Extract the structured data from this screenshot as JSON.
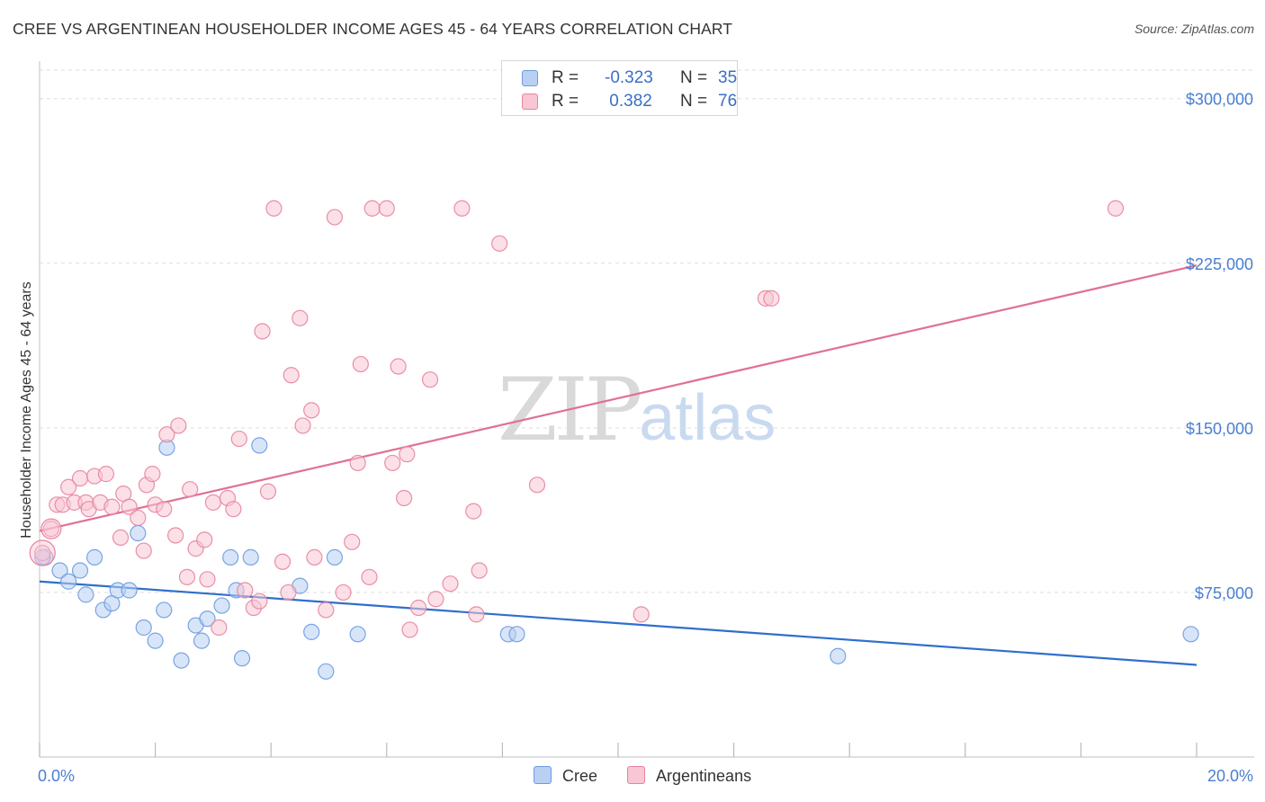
{
  "chart_data": {
    "type": "scatter",
    "title": "CREE VS ARGENTINEAN HOUSEHOLDER INCOME AGES 45 - 64 YEARS CORRELATION CHART",
    "source": "Source: ZipAtlas.com",
    "source_label": "Source: ",
    "source_site": "ZipAtlas.com",
    "xlabel": "",
    "ylabel": "Householder Income Ages 45 - 64 years",
    "xlim": [
      0,
      20
    ],
    "ylim": [
      0,
      313000
    ],
    "x_tick_labels": [
      "0.0%",
      "20.0%"
    ],
    "y_ticks": [
      75000,
      150000,
      225000,
      300000
    ],
    "y_tick_labels": [
      "$75,000",
      "$150,000",
      "$225,000",
      "$300,000"
    ],
    "grid": true,
    "watermark": {
      "zip": "ZIP",
      "atlas": "atlas"
    },
    "legend": [
      {
        "name": "Cree",
        "r_label": "R = ",
        "r": "-0.323",
        "n_label": "N = ",
        "n": "35",
        "color": "#6b9be0",
        "fill": "#b8d0f2"
      },
      {
        "name": "Argentineans",
        "r_label": "R = ",
        "r": " 0.382",
        "n_label": "N = ",
        "n": "76",
        "color": "#e8839f",
        "fill": "#f8c6d4"
      }
    ],
    "series": [
      {
        "name": "Cree",
        "color": "#6b9be0",
        "fill": "#b8d0f2",
        "trend": {
          "x0": 0,
          "y0": 80000,
          "x1": 20,
          "y1": 42000,
          "color": "#2f6fcc"
        },
        "points": [
          [
            0.1,
            91000
          ],
          [
            0.35,
            85000
          ],
          [
            0.5,
            80000
          ],
          [
            0.7,
            85000
          ],
          [
            0.8,
            74000
          ],
          [
            0.95,
            91000
          ],
          [
            1.1,
            67000
          ],
          [
            1.25,
            70000
          ],
          [
            1.35,
            76000
          ],
          [
            1.55,
            76000
          ],
          [
            1.7,
            102000
          ],
          [
            1.8,
            59000
          ],
          [
            2.0,
            53000
          ],
          [
            2.15,
            67000
          ],
          [
            2.2,
            141000
          ],
          [
            2.45,
            44000
          ],
          [
            2.7,
            60000
          ],
          [
            2.8,
            53000
          ],
          [
            2.9,
            63000
          ],
          [
            3.15,
            69000
          ],
          [
            3.3,
            91000
          ],
          [
            3.4,
            76000
          ],
          [
            3.5,
            45000
          ],
          [
            3.65,
            91000
          ],
          [
            3.8,
            142000
          ],
          [
            4.5,
            78000
          ],
          [
            4.7,
            57000
          ],
          [
            4.95,
            39000
          ],
          [
            5.1,
            91000
          ],
          [
            5.5,
            56000
          ],
          [
            8.1,
            56000
          ],
          [
            8.25,
            56000
          ],
          [
            13.8,
            46000
          ],
          [
            19.9,
            56000
          ],
          [
            0.05,
            91000
          ]
        ]
      },
      {
        "name": "Argentineans",
        "color": "#e8839f",
        "fill": "#f8c6d4",
        "trend": {
          "x0": 0,
          "y0": 103000,
          "x1": 20,
          "y1": 224000,
          "color": "#e07095"
        },
        "points": [
          [
            0.05,
            93000
          ],
          [
            0.2,
            104000
          ],
          [
            0.3,
            115000
          ],
          [
            0.4,
            115000
          ],
          [
            0.5,
            123000
          ],
          [
            0.6,
            116000
          ],
          [
            0.7,
            127000
          ],
          [
            0.8,
            116000
          ],
          [
            0.85,
            113000
          ],
          [
            0.95,
            128000
          ],
          [
            1.05,
            116000
          ],
          [
            1.15,
            129000
          ],
          [
            1.25,
            114000
          ],
          [
            1.4,
            100000
          ],
          [
            1.45,
            120000
          ],
          [
            1.55,
            114000
          ],
          [
            1.7,
            109000
          ],
          [
            1.8,
            94000
          ],
          [
            1.85,
            124000
          ],
          [
            1.95,
            129000
          ],
          [
            2.0,
            115000
          ],
          [
            2.15,
            113000
          ],
          [
            2.2,
            147000
          ],
          [
            2.35,
            101000
          ],
          [
            2.4,
            151000
          ],
          [
            2.55,
            82000
          ],
          [
            2.6,
            122000
          ],
          [
            2.7,
            95000
          ],
          [
            2.85,
            99000
          ],
          [
            2.9,
            81000
          ],
          [
            3.0,
            116000
          ],
          [
            3.1,
            59000
          ],
          [
            3.25,
            118000
          ],
          [
            3.35,
            113000
          ],
          [
            3.45,
            145000
          ],
          [
            3.55,
            76000
          ],
          [
            3.7,
            68000
          ],
          [
            3.8,
            71000
          ],
          [
            3.85,
            194000
          ],
          [
            3.95,
            121000
          ],
          [
            4.05,
            250000
          ],
          [
            4.2,
            89000
          ],
          [
            4.3,
            75000
          ],
          [
            4.35,
            174000
          ],
          [
            4.5,
            200000
          ],
          [
            4.55,
            151000
          ],
          [
            4.7,
            158000
          ],
          [
            4.75,
            91000
          ],
          [
            4.95,
            67000
          ],
          [
            5.1,
            246000
          ],
          [
            5.25,
            75000
          ],
          [
            5.4,
            98000
          ],
          [
            5.5,
            134000
          ],
          [
            5.55,
            179000
          ],
          [
            5.7,
            82000
          ],
          [
            5.75,
            250000
          ],
          [
            6.0,
            250000
          ],
          [
            6.1,
            134000
          ],
          [
            6.2,
            178000
          ],
          [
            6.3,
            118000
          ],
          [
            6.35,
            138000
          ],
          [
            6.4,
            58000
          ],
          [
            6.55,
            68000
          ],
          [
            6.75,
            172000
          ],
          [
            6.85,
            72000
          ],
          [
            7.1,
            79000
          ],
          [
            7.3,
            250000
          ],
          [
            7.5,
            112000
          ],
          [
            7.55,
            65000
          ],
          [
            7.6,
            85000
          ],
          [
            7.95,
            234000
          ],
          [
            8.6,
            124000
          ],
          [
            10.4,
            65000
          ],
          [
            12.55,
            209000
          ],
          [
            12.65,
            209000
          ],
          [
            18.6,
            250000
          ]
        ]
      }
    ]
  }
}
